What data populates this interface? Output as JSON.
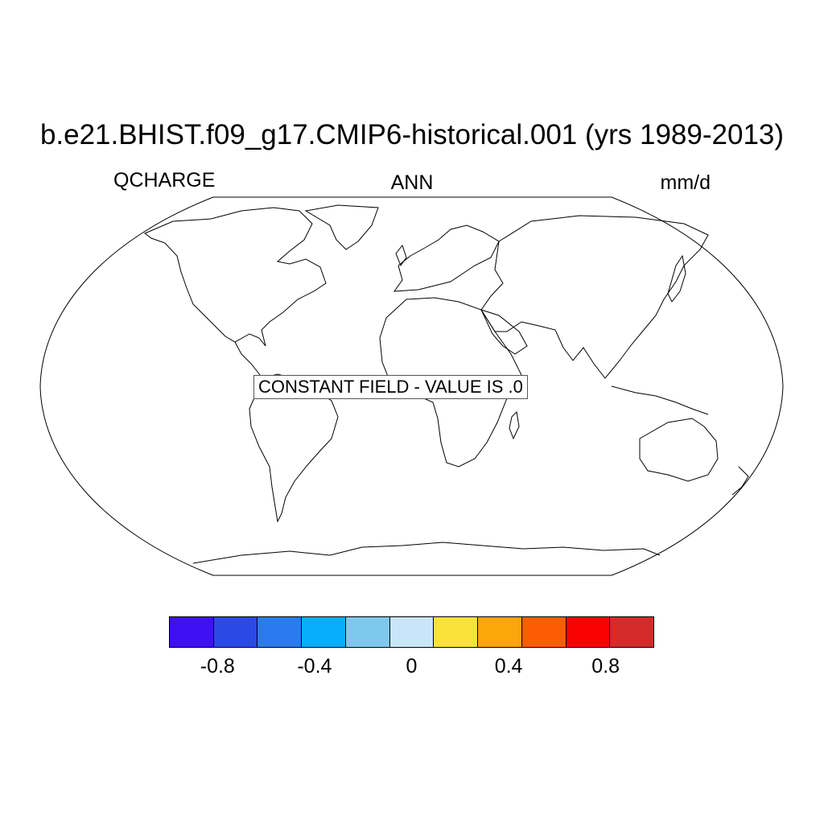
{
  "title": "b.e21.BHIST.f09_g17.CMIP6-historical.001 (yrs 1989-2013)",
  "left_subtitle": "QCHARGE",
  "center_subtitle": "ANN",
  "right_subtitle": "mm/d",
  "map": {
    "projection": "Robinson",
    "message": "CONSTANT FIELD - VALUE IS .0",
    "field_value": 0.0
  },
  "colorbar": {
    "colors": [
      "#4010f5",
      "#2c49e6",
      "#2b7bee",
      "#08aefc",
      "#7ec8ee",
      "#c8e6f8",
      "#fbe23a",
      "#fda60c",
      "#fd5d02",
      "#f80302",
      "#d42a2a"
    ],
    "boundaries": [
      -1.0,
      -0.8,
      -0.6,
      -0.4,
      -0.2,
      0.0,
      0.2,
      0.4,
      0.6,
      0.8,
      1.0
    ],
    "tick_labels": [
      {
        "value": -0.8,
        "text": "-0.8"
      },
      {
        "value": -0.4,
        "text": "-0.4"
      },
      {
        "value": 0.0,
        "text": "0"
      },
      {
        "value": 0.4,
        "text": "0.4"
      },
      {
        "value": 0.8,
        "text": "0.8"
      }
    ]
  }
}
